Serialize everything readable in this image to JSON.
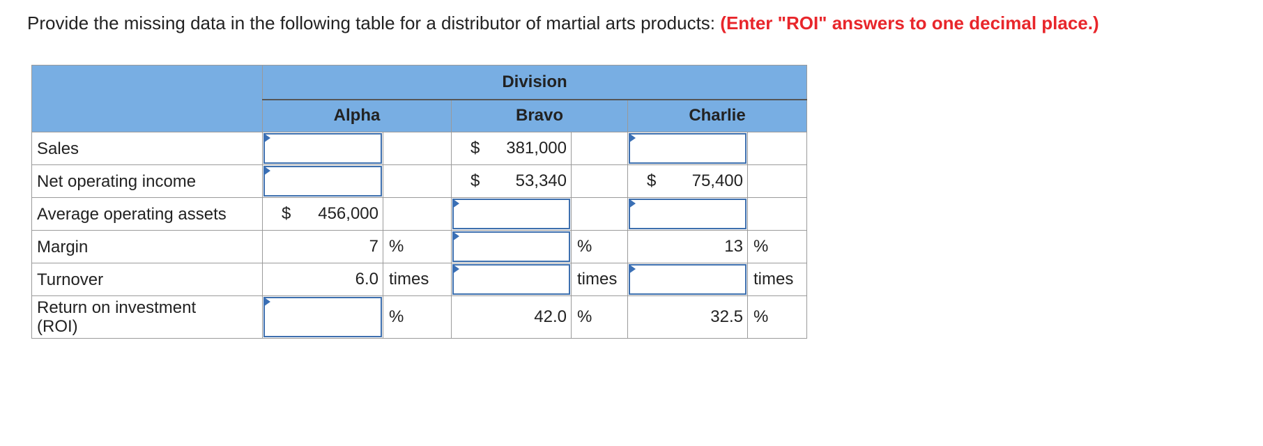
{
  "instructions": {
    "text": "Provide the missing data in the following table for a distributor of martial arts products:",
    "highlight": "(Enter \"ROI\" answers to one decimal place.)"
  },
  "table": {
    "division_header": "Division",
    "columns": [
      "Alpha",
      "Bravo",
      "Charlie"
    ],
    "currency_symbol": "$",
    "rows": [
      {
        "label": "Sales",
        "alpha": {
          "value": "",
          "unit": "",
          "is_input": true
        },
        "bravo": {
          "value": "381,000",
          "unit": "",
          "is_input": false
        },
        "charlie": {
          "value": "",
          "unit": "",
          "is_input": true
        }
      },
      {
        "label": "Net operating income",
        "alpha": {
          "value": "",
          "unit": "",
          "is_input": true
        },
        "bravo": {
          "value": "53,340",
          "unit": "",
          "is_input": false
        },
        "charlie": {
          "value": "75,400",
          "unit": "",
          "is_input": false
        }
      },
      {
        "label": "Average operating assets",
        "alpha": {
          "value": "456,000",
          "unit": "",
          "is_input": false
        },
        "bravo": {
          "value": "",
          "unit": "",
          "is_input": true
        },
        "charlie": {
          "value": "",
          "unit": "",
          "is_input": true
        }
      },
      {
        "label": "Margin",
        "alpha": {
          "value": "7",
          "unit": "%",
          "is_input": false
        },
        "bravo": {
          "value": "",
          "unit": "%",
          "is_input": true
        },
        "charlie": {
          "value": "13",
          "unit": "%",
          "is_input": false
        }
      },
      {
        "label": "Turnover",
        "alpha": {
          "value": "6.0",
          "unit": "times",
          "is_input": false
        },
        "bravo": {
          "value": "",
          "unit": "times",
          "is_input": true
        },
        "charlie": {
          "value": "",
          "unit": "times",
          "is_input": true
        }
      },
      {
        "label": "Return on investment (ROI)",
        "alpha": {
          "value": "",
          "unit": "%",
          "is_input": true
        },
        "bravo": {
          "value": "42.0",
          "unit": "%",
          "is_input": false
        },
        "charlie": {
          "value": "32.5",
          "unit": "%",
          "is_input": false
        }
      }
    ]
  },
  "colors": {
    "header_bg": "#78aee3",
    "instruction_highlight": "#e8262b",
    "input_border": "#3d6fae",
    "grid_line": "#9a9a9a"
  }
}
